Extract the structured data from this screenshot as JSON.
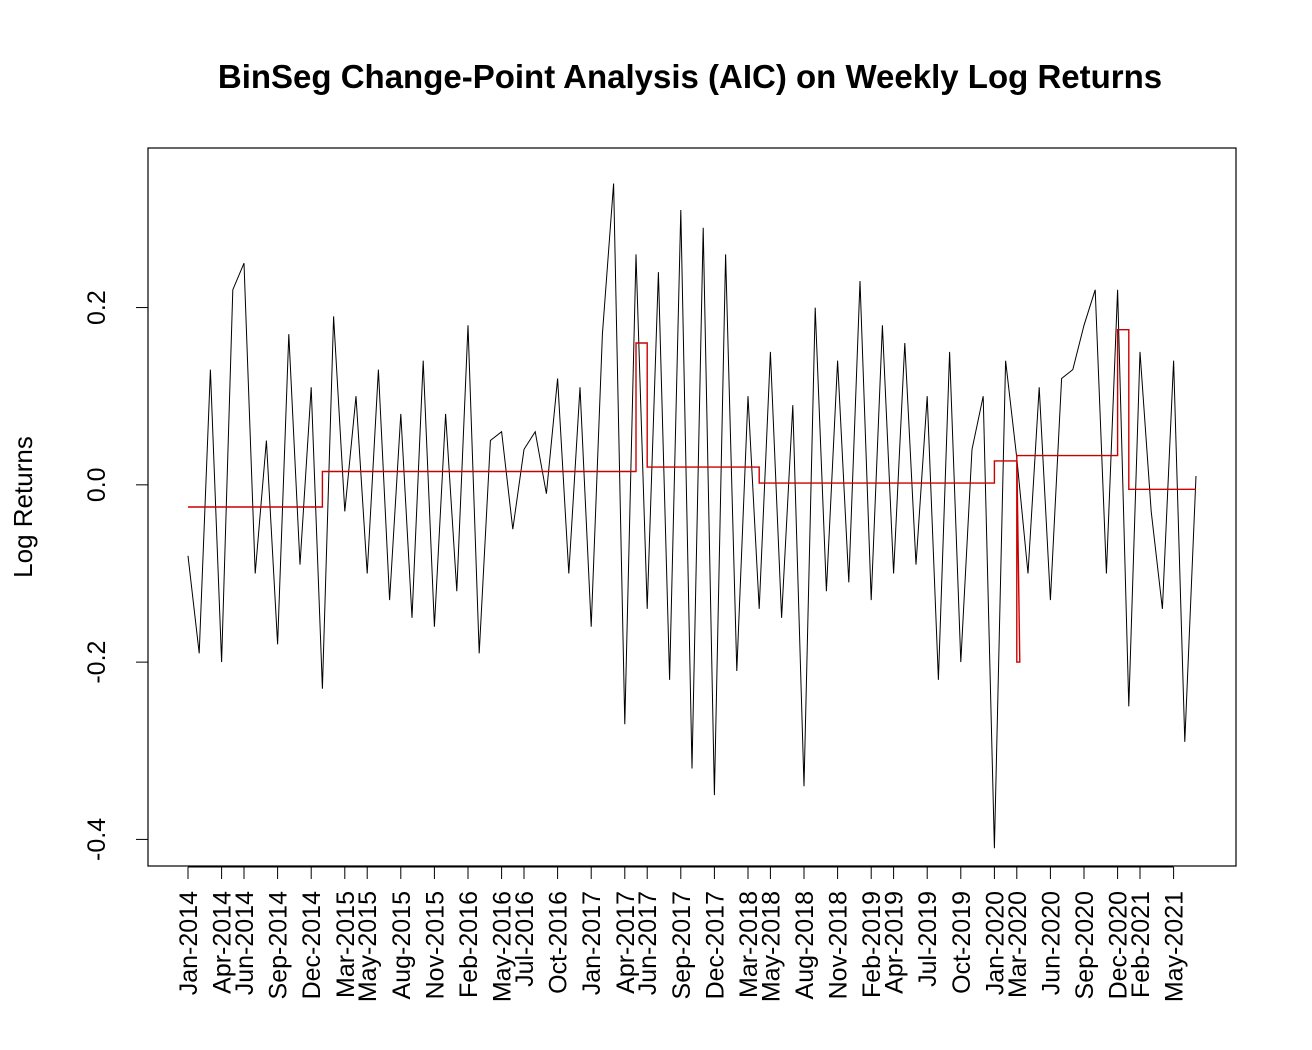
{
  "chart_data": {
    "type": "line",
    "title": "BinSeg Change-Point Analysis (AIC) on Weekly Log Returns",
    "xlabel": "",
    "ylabel": "Log Returns",
    "ylim": [
      -0.43,
      0.38
    ],
    "yticks": [
      -0.4,
      -0.2,
      0.0,
      0.2
    ],
    "ytick_labels": [
      "-0.4",
      "-0.2",
      "0.0",
      "0.2"
    ],
    "x_axis": {
      "start": "2014-01",
      "end": "2021-07",
      "unit": "week"
    },
    "xticks": [
      {
        "date": "2014-01",
        "label": "Jan-2014"
      },
      {
        "date": "2014-04",
        "label": "Apr-2014"
      },
      {
        "date": "2014-06",
        "label": "Jun-2014"
      },
      {
        "date": "2014-09",
        "label": "Sep-2014"
      },
      {
        "date": "2014-12",
        "label": "Dec-2014"
      },
      {
        "date": "2015-03",
        "label": "Mar-2015"
      },
      {
        "date": "2015-05",
        "label": "May-2015"
      },
      {
        "date": "2015-08",
        "label": "Aug-2015"
      },
      {
        "date": "2015-11",
        "label": "Nov-2015"
      },
      {
        "date": "2016-02",
        "label": "Feb-2016"
      },
      {
        "date": "2016-05",
        "label": "May-2016"
      },
      {
        "date": "2016-07",
        "label": "Jul-2016"
      },
      {
        "date": "2016-10",
        "label": "Oct-2016"
      },
      {
        "date": "2017-01",
        "label": "Jan-2017"
      },
      {
        "date": "2017-04",
        "label": "Apr-2017"
      },
      {
        "date": "2017-06",
        "label": "Jun-2017"
      },
      {
        "date": "2017-09",
        "label": "Sep-2017"
      },
      {
        "date": "2017-12",
        "label": "Dec-2017"
      },
      {
        "date": "2018-03",
        "label": "Mar-2018"
      },
      {
        "date": "2018-05",
        "label": "May-2018"
      },
      {
        "date": "2018-08",
        "label": "Aug-2018"
      },
      {
        "date": "2018-11",
        "label": "Nov-2018"
      },
      {
        "date": "2019-02",
        "label": "Feb-2019"
      },
      {
        "date": "2019-04",
        "label": "Apr-2019"
      },
      {
        "date": "2019-07",
        "label": "Jul-2019"
      },
      {
        "date": "2019-10",
        "label": "Oct-2019"
      },
      {
        "date": "2020-01",
        "label": "Jan-2020"
      },
      {
        "date": "2020-03",
        "label": "Mar-2020"
      },
      {
        "date": "2020-06",
        "label": "Jun-2020"
      },
      {
        "date": "2020-09",
        "label": "Sep-2020"
      },
      {
        "date": "2020-12",
        "label": "Dec-2020"
      },
      {
        "date": "2021-02",
        "label": "Feb-2021"
      },
      {
        "date": "2021-05",
        "label": "May-2021"
      }
    ],
    "series": [
      {
        "color": "#000000",
        "x": [
          "2014-01",
          "2014-02",
          "2014-03",
          "2014-04",
          "2014-05",
          "2014-06",
          "2014-07",
          "2014-08",
          "2014-09",
          "2014-10",
          "2014-11",
          "2014-12",
          "2015-01",
          "2015-02",
          "2015-03",
          "2015-04",
          "2015-05",
          "2015-06",
          "2015-07",
          "2015-08",
          "2015-09",
          "2015-10",
          "2015-11",
          "2015-12",
          "2016-01",
          "2016-02",
          "2016-03",
          "2016-04",
          "2016-05",
          "2016-06",
          "2016-07",
          "2016-08",
          "2016-09",
          "2016-10",
          "2016-11",
          "2016-12",
          "2017-01",
          "2017-02",
          "2017-03",
          "2017-04",
          "2017-05",
          "2017-06",
          "2017-07",
          "2017-08",
          "2017-09",
          "2017-10",
          "2017-11",
          "2017-12",
          "2018-01",
          "2018-02",
          "2018-03",
          "2018-04",
          "2018-05",
          "2018-06",
          "2018-07",
          "2018-08",
          "2018-09",
          "2018-10",
          "2018-11",
          "2018-12",
          "2019-01",
          "2019-02",
          "2019-03",
          "2019-04",
          "2019-05",
          "2019-06",
          "2019-07",
          "2019-08",
          "2019-09",
          "2019-10",
          "2019-11",
          "2019-12",
          "2020-01",
          "2020-02",
          "2020-03",
          "2020-04",
          "2020-05",
          "2020-06",
          "2020-07",
          "2020-08",
          "2020-09",
          "2020-10",
          "2020-11",
          "2020-12",
          "2021-01",
          "2021-02",
          "2021-03",
          "2021-04",
          "2021-05",
          "2021-06",
          "2021-07"
        ],
        "values": [
          -0.08,
          -0.19,
          0.13,
          -0.2,
          0.22,
          0.25,
          -0.1,
          0.05,
          -0.18,
          0.17,
          -0.09,
          0.11,
          -0.23,
          0.19,
          -0.03,
          0.1,
          -0.1,
          0.13,
          -0.13,
          0.08,
          -0.15,
          0.14,
          -0.16,
          0.08,
          -0.12,
          0.18,
          -0.19,
          0.05,
          0.06,
          -0.05,
          0.04,
          0.06,
          -0.01,
          0.12,
          -0.1,
          0.11,
          -0.16,
          0.17,
          0.34,
          -0.27,
          0.26,
          -0.14,
          0.24,
          -0.22,
          0.31,
          -0.32,
          0.29,
          -0.35,
          0.26,
          -0.21,
          0.1,
          -0.14,
          0.15,
          -0.15,
          0.09,
          -0.34,
          0.2,
          -0.12,
          0.14,
          -0.11,
          0.23,
          -0.13,
          0.18,
          -0.1,
          0.16,
          -0.09,
          0.1,
          -0.22,
          0.15,
          -0.2,
          0.04,
          0.1,
          -0.41,
          0.14,
          0.03,
          -0.1,
          0.11,
          -0.13,
          0.12,
          0.13,
          0.18,
          0.22,
          -0.1,
          0.22,
          -0.25,
          0.15,
          -0.03,
          -0.14,
          0.14,
          -0.29,
          0.01
        ]
      },
      {
        "color": "#cc0000",
        "step": true,
        "segments": [
          {
            "start": "2014-01",
            "end": "2015-01",
            "value": -0.025
          },
          {
            "start": "2015-01",
            "end": "2017-05",
            "value": 0.015
          },
          {
            "start": "2017-05",
            "end": "2017-06",
            "value": 0.16
          },
          {
            "start": "2017-06",
            "end": "2018-04",
            "value": 0.02
          },
          {
            "start": "2018-04",
            "end": "2020-01",
            "value": 0.002
          },
          {
            "start": "2020-01",
            "end": "2020-03",
            "value": 0.027
          },
          {
            "start": "2020-03",
            "end": "2020-03",
            "value": -0.2
          },
          {
            "start": "2020-03",
            "end": "2020-12",
            "value": 0.033
          },
          {
            "start": "2020-12",
            "end": "2021-01",
            "value": 0.175
          },
          {
            "start": "2021-01",
            "end": "2021-07",
            "value": -0.005
          }
        ]
      }
    ],
    "grid": false,
    "legend": "none"
  }
}
